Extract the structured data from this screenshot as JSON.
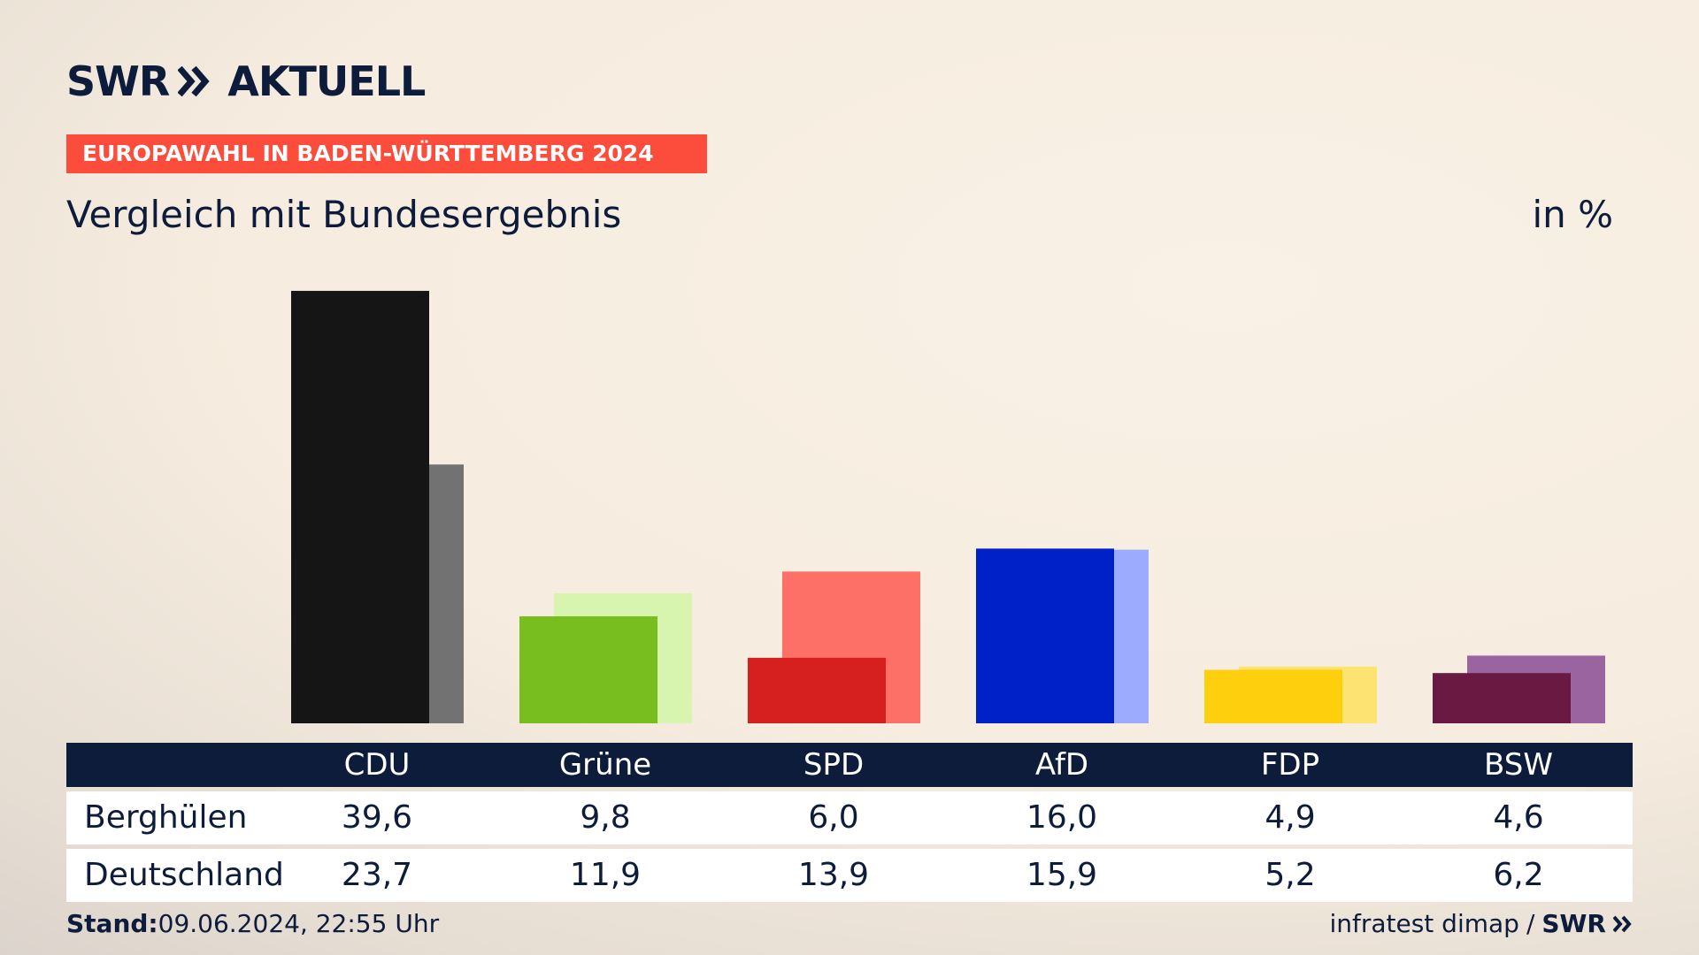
{
  "header": {
    "logo_swr": "SWR",
    "logo_aktuell": "AKTUELL",
    "badge": "EUROPAWAHL IN BADEN-WÜRTTEMBERG 2024",
    "subtitle": "Vergleich mit Bundesergebnis",
    "unit": "in %"
  },
  "table": {
    "parties": [
      "CDU",
      "Grüne",
      "SPD",
      "AfD",
      "FDP",
      "BSW"
    ],
    "rows": [
      {
        "label": "Berghülen",
        "values": [
          "39,6",
          "9,8",
          "6,0",
          "16,0",
          "4,9",
          "4,6"
        ]
      },
      {
        "label": "Deutschland",
        "values": [
          "23,7",
          "11,9",
          "13,9",
          "15,9",
          "5,2",
          "6,2"
        ]
      }
    ]
  },
  "footer": {
    "stand_label": "Stand:",
    "stand_value": "09.06.2024, 22:55 Uhr",
    "source": "infratest dimap",
    "separator": "/",
    "brand": "SWR"
  },
  "colors": {
    "accent": "#fb4c3c",
    "navy": "#0d1c3b",
    "CDU": [
      "#151515",
      "#727272"
    ],
    "Grüne": [
      "#78be1e",
      "#d8f5b0"
    ],
    "SPD": [
      "#d62020",
      "#fd7068"
    ],
    "AfD": [
      "#0021c8",
      "#9dabff"
    ],
    "FDP": [
      "#fdcf0c",
      "#fde472"
    ],
    "BSW": [
      "#6a1a42",
      "#9a64a0"
    ]
  },
  "chart_data": {
    "type": "bar",
    "categories": [
      "CDU",
      "Grüne",
      "SPD",
      "AfD",
      "FDP",
      "BSW"
    ],
    "series": [
      {
        "name": "Berghülen",
        "values": [
          39.6,
          9.8,
          6.0,
          16.0,
          4.9,
          4.6
        ]
      },
      {
        "name": "Deutschland",
        "values": [
          23.7,
          11.9,
          13.9,
          15.9,
          5.2,
          6.2
        ]
      }
    ],
    "title": "Vergleich mit Bundesergebnis",
    "ylabel": "in %",
    "ylim": [
      0,
      40
    ],
    "grid": false,
    "legend": "table"
  }
}
